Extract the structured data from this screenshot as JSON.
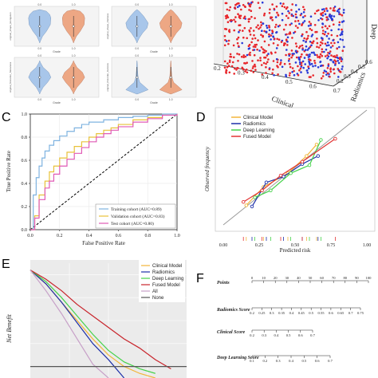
{
  "panels": {
    "C": "C",
    "D": "D",
    "E": "E",
    "F": "F"
  },
  "panel_a": {
    "violins": [
      {
        "top_ticks": [
          "0.0",
          "1.0"
        ],
        "bottom_ticks": [
          "0.0",
          "1.0"
        ],
        "ylabel": "original_shape_Elongation",
        "xlabel": "Grade"
      },
      {
        "top_ticks": [
          "0.0",
          "1.0"
        ],
        "bottom_ticks": [
          "0.0",
          "1.0"
        ],
        "ylabel": "original_shape_Flatness",
        "xlabel": "Grade"
      },
      {
        "top_ticks": [
          "0.0",
          "1.0"
        ],
        "bottom_ticks": [
          "0.0",
          "1.0"
        ],
        "ylabel": "original_firstorder_Skewness",
        "xlabel": "Grade"
      },
      {
        "top_ticks": [
          "0.0",
          "1.0"
        ],
        "bottom_ticks": [
          "0.0",
          "1.0"
        ],
        "ylabel": "original_firstorder_Kurtosis",
        "xlabel": "Grade"
      }
    ],
    "colors": {
      "left": "#a8c6ea",
      "right": "#eda784"
    }
  },
  "chart_data": [
    {
      "type": "scatter",
      "panel": "B",
      "axes": {
        "x_label": "Clinical",
        "x_ticks": [
          "0.2",
          "0.3",
          "0.4",
          "0.5",
          "0.6",
          "0.7"
        ],
        "y_label": "Radiomics",
        "y_ticks": [
          "0.2",
          "0.3",
          "0.4",
          "0.5",
          "0.6"
        ],
        "z_label": "Deep"
      },
      "series": [
        {
          "color": "#e8262b"
        },
        {
          "color": "#2a3ad8"
        }
      ]
    },
    {
      "type": "line",
      "panel": "C",
      "xlabel": "False Positive Rate",
      "ylabel": "True Positive Rate",
      "xlim": [
        0,
        1
      ],
      "ylim": [
        0,
        1
      ],
      "x_ticks": [
        "0.0",
        "0.2",
        "0.4",
        "0.6",
        "0.8",
        "1.0"
      ],
      "y_ticks": [
        "0.0",
        "0.2",
        "0.4",
        "0.6",
        "0.8",
        "1.0"
      ],
      "series": [
        {
          "name": "Training cohort (AUC=0.89)",
          "color": "#7fb3e0",
          "x": [
            0,
            0.02,
            0.04,
            0.06,
            0.08,
            0.1,
            0.13,
            0.16,
            0.2,
            0.25,
            0.3,
            0.35,
            0.4,
            0.5,
            0.6,
            0.7,
            0.8,
            0.9,
            1.0
          ],
          "y": [
            0,
            0.3,
            0.45,
            0.55,
            0.62,
            0.68,
            0.73,
            0.77,
            0.81,
            0.85,
            0.88,
            0.91,
            0.93,
            0.95,
            0.97,
            0.98,
            0.99,
            1.0,
            1.0
          ]
        },
        {
          "name": "Validation cohort (AUC=0.83)",
          "color": "#e8c23a",
          "x": [
            0,
            0.03,
            0.06,
            0.1,
            0.13,
            0.16,
            0.2,
            0.25,
            0.3,
            0.35,
            0.4,
            0.45,
            0.5,
            0.55,
            0.6,
            0.7,
            0.8,
            0.9,
            1.0
          ],
          "y": [
            0,
            0.12,
            0.3,
            0.42,
            0.5,
            0.55,
            0.62,
            0.67,
            0.72,
            0.76,
            0.8,
            0.83,
            0.86,
            0.88,
            0.91,
            0.95,
            0.97,
            0.99,
            1.0
          ]
        },
        {
          "name": "Test cohort (AUC=0.80)",
          "color": "#e05ab5",
          "x": [
            0,
            0.03,
            0.06,
            0.1,
            0.13,
            0.16,
            0.2,
            0.25,
            0.3,
            0.35,
            0.4,
            0.45,
            0.5,
            0.55,
            0.6,
            0.7,
            0.8,
            0.9,
            1.0
          ],
          "y": [
            0,
            0.1,
            0.26,
            0.36,
            0.42,
            0.48,
            0.55,
            0.61,
            0.66,
            0.71,
            0.76,
            0.8,
            0.83,
            0.86,
            0.89,
            0.93,
            0.96,
            0.99,
            1.0
          ]
        }
      ]
    },
    {
      "type": "line",
      "panel": "D",
      "xlabel": "Predicted risk",
      "ylabel": "Observed frequency",
      "xlim": [
        0,
        1
      ],
      "ylim": [
        0,
        1
      ],
      "x_ticks": [
        "0.00",
        "0.25",
        "0.50",
        "0.75",
        "1.00"
      ],
      "y_ticks": [],
      "series": [
        {
          "name": "Clinical Model",
          "color": "#f2b53a",
          "x": [
            0.16,
            0.28,
            0.45,
            0.58,
            0.65
          ],
          "y": [
            0.17,
            0.33,
            0.45,
            0.6,
            0.7
          ]
        },
        {
          "name": "Radiomics",
          "color": "#1d2fa8",
          "x": [
            0.2,
            0.3,
            0.42,
            0.55,
            0.66
          ],
          "y": [
            0.16,
            0.37,
            0.42,
            0.53,
            0.6
          ]
        },
        {
          "name": "Deep Learning",
          "color": "#45d24a",
          "x": [
            0.22,
            0.33,
            0.47,
            0.6,
            0.68
          ],
          "y": [
            0.24,
            0.3,
            0.45,
            0.52,
            0.74
          ]
        },
        {
          "name": "Fused Model",
          "color": "#e23434",
          "x": [
            0.14,
            0.27,
            0.4,
            0.55,
            0.78
          ],
          "y": [
            0.2,
            0.3,
            0.43,
            0.55,
            0.75
          ]
        }
      ]
    },
    {
      "type": "line",
      "panel": "E",
      "ylabel": "Net Benefit",
      "xlim": [
        0,
        1
      ],
      "ylim": [
        -0.05,
        0.45
      ],
      "series": [
        {
          "name": "Clinical Model",
          "color": "#f2b53a",
          "x": [
            0,
            0.1,
            0.2,
            0.3,
            0.4,
            0.5,
            0.6,
            0.7,
            0.8
          ],
          "y": [
            0.42,
            0.36,
            0.28,
            0.2,
            0.12,
            0.05,
            0.0,
            -0.03,
            -0.05
          ]
        },
        {
          "name": "Radiomics",
          "color": "#1d2fa8",
          "x": [
            0,
            0.1,
            0.2,
            0.3,
            0.4,
            0.5,
            0.6
          ],
          "y": [
            0.42,
            0.36,
            0.28,
            0.19,
            0.1,
            0.03,
            -0.05
          ]
        },
        {
          "name": "Deep Learning",
          "color": "#45d24a",
          "x": [
            0,
            0.1,
            0.2,
            0.3,
            0.4,
            0.5,
            0.6,
            0.7,
            0.8
          ],
          "y": [
            0.42,
            0.37,
            0.3,
            0.22,
            0.14,
            0.07,
            0.02,
            -0.01,
            -0.03
          ]
        },
        {
          "name": "Fused Model",
          "color": "#c8242b",
          "x": [
            0,
            0.1,
            0.2,
            0.3,
            0.4,
            0.5,
            0.6,
            0.7,
            0.8,
            0.9
          ],
          "y": [
            0.42,
            0.38,
            0.33,
            0.27,
            0.22,
            0.17,
            0.12,
            0.08,
            0.03,
            -0.01
          ]
        },
        {
          "name": "All",
          "color": "#c7a0c8",
          "x": [
            0,
            0.1,
            0.2,
            0.3,
            0.4,
            0.5
          ],
          "y": [
            0.42,
            0.33,
            0.23,
            0.12,
            0.01,
            -0.05
          ]
        },
        {
          "name": "None",
          "color": "#555555",
          "x": [
            0,
            1
          ],
          "y": [
            0,
            0
          ]
        }
      ]
    }
  ],
  "nomogram": {
    "rows": [
      {
        "label": "Points",
        "ticks": [
          "0",
          "10",
          "20",
          "30",
          "40",
          "50",
          "60",
          "70",
          "80",
          "90",
          "100"
        ]
      },
      {
        "label": "Radiomics Score",
        "ticks": [
          "0.2",
          "0.25",
          "0.3",
          "0.35",
          "0.4",
          "0.45",
          "0.5",
          "0.55",
          "0.6",
          "0.65",
          "0.7",
          "0.75"
        ]
      },
      {
        "label": "Clinical Score",
        "ticks": [
          "0.2",
          "0.3",
          "0.4",
          "0.5",
          "0.6",
          "0.7"
        ]
      },
      {
        "label": "Deep Learning Score",
        "ticks": [
          "0.1",
          "0.2",
          "0.3",
          "0.4",
          "0.5",
          "0.6",
          "0.7"
        ]
      }
    ]
  }
}
